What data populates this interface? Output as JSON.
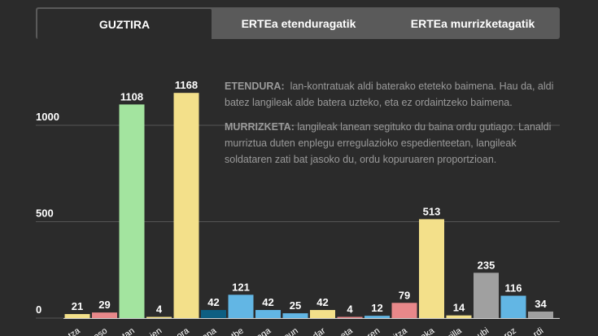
{
  "tabs": [
    {
      "label": "GUZTIRA",
      "active": true
    },
    {
      "label": "ERTEa etenduragatik",
      "active": false
    },
    {
      "label": "ERTEa murrizketagatik",
      "active": false
    }
  ],
  "info": {
    "etendura_term": "ETENDURA:",
    "etendura_text": "lan-kontratuak aldi baterako eteteko baimena. Hau da, aldi batez langileak alde batera uzteko, eta ez ordaintzeko baimena.",
    "murrizketa_term": "MURRIZKETA:",
    "murrizketa_text": "langileak lanean segituko du baina ordu gutiago. Lanaldi murriztua duten enplegu erregulazioko espedienteetan, langileak soldataren zati bat jasoko du, ordu kopuruaren proportzioan."
  },
  "colors": {
    "background": "#2b2b2b",
    "grid": "#555555",
    "label": "#ffffff"
  },
  "chart_data": {
    "type": "bar",
    "ylim": [
      0,
      1300
    ],
    "yticks": [
      0,
      500,
      1000
    ],
    "grid": true,
    "categories": [
      "...tza",
      "...oso",
      "...tan",
      "...ien",
      "...ora",
      "...ana",
      "...tbe",
      "...aga",
      "...oun",
      "...dar",
      "...eta",
      "...ren",
      "...itza",
      "...aka",
      "...rilla",
      "...ubi",
      "...roz",
      "...rdi"
    ],
    "values": [
      21,
      29,
      1108,
      4,
      1168,
      42,
      121,
      42,
      25,
      42,
      4,
      12,
      79,
      513,
      14,
      235,
      116,
      34
    ],
    "colors": [
      "#f3e08a",
      "#e8888a",
      "#a3e49f",
      "#f3e08a",
      "#f3e08a",
      "#0e5f82",
      "#62b6e4",
      "#62b6e4",
      "#62b6e4",
      "#f3e08a",
      "#e8888a",
      "#62b6e4",
      "#e8888a",
      "#f3e08a",
      "#f3e08a",
      "#a0a0a0",
      "#62b6e4",
      "#a0a0a0"
    ]
  }
}
